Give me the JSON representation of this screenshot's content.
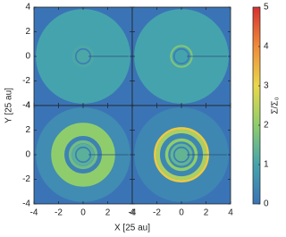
{
  "chart_data": {
    "type": "disk-maps",
    "xlabel": "X [25 au]",
    "ylabel": "Y [25 au]",
    "xlim": [
      -4,
      4
    ],
    "ylim": [
      -4,
      4
    ],
    "xticks": [
      -4,
      -2,
      0,
      2,
      4
    ],
    "yticks": [
      -4,
      -2,
      0,
      2,
      4
    ],
    "disk_radius": 3.85,
    "colorbar": {
      "label": "Σ/Σ₀",
      "lim": [
        0,
        5
      ],
      "ticks": [
        0,
        1,
        2,
        3,
        4,
        5
      ],
      "colors": [
        "#3a74b6",
        "#45a3ad",
        "#8fcd6c",
        "#e9d84c",
        "#f08c3a",
        "#d6312f"
      ]
    },
    "panels": [
      {
        "background": 1.0,
        "rings": [
          {
            "radius": 0.45,
            "width": 0.9,
            "value": 1.1
          },
          {
            "radius": 0.6,
            "width": 0.12,
            "value": 0.2
          }
        ]
      },
      {
        "background": 1.0,
        "rings": [
          {
            "radius": 0.45,
            "width": 0.9,
            "value": 1.0
          },
          {
            "radius": 0.6,
            "width": 0.12,
            "value": 0.2
          },
          {
            "radius": 0.85,
            "width": 0.15,
            "value": 1.8
          }
        ]
      },
      {
        "background": 0.5,
        "rings": [
          {
            "radius": 2.05,
            "width": 1.1,
            "value": 2.0
          },
          {
            "radius": 1.35,
            "width": 0.35,
            "value": 0.3
          },
          {
            "radius": 1.05,
            "width": 0.25,
            "value": 1.6
          },
          {
            "radius": 0.45,
            "width": 0.9,
            "value": 1.3
          },
          {
            "radius": 0.6,
            "width": 0.12,
            "value": 0.2
          }
        ]
      },
      {
        "background": 0.4,
        "rings": [
          {
            "radius": 2.15,
            "width": 0.2,
            "value": 3.2
          },
          {
            "radius": 1.9,
            "width": 0.3,
            "value": 2.3
          },
          {
            "radius": 1.2,
            "width": 0.25,
            "value": 2.0
          },
          {
            "radius": 0.45,
            "width": 0.9,
            "value": 1.4
          },
          {
            "radius": 0.6,
            "width": 0.12,
            "value": 0.2
          }
        ]
      }
    ]
  }
}
